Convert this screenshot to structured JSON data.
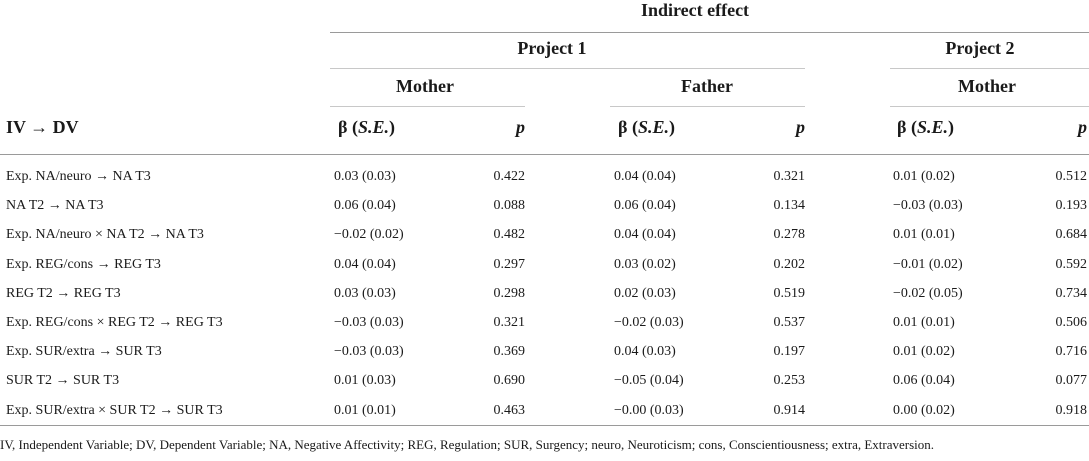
{
  "headers": {
    "super": "Indirect effect",
    "project1": "Project 1",
    "project2": "Project 2",
    "mother1": "Mother",
    "father1": "Father",
    "mother2": "Mother",
    "iv_dv": "IV → DV",
    "beta_prefix": "β (",
    "beta_se": "S.E.",
    "beta_suffix": ")",
    "p": "p"
  },
  "rows": [
    {
      "label": "Exp. NA/neuro → NA T3",
      "b1": "0.03 (0.03)",
      "p1": "0.422",
      "b2": "0.04 (0.04)",
      "p2": "0.321",
      "b3": "0.01 (0.02)",
      "p3": "0.512"
    },
    {
      "label": "NA T2 → NA T3",
      "b1": "0.06 (0.04)",
      "p1": "0.088",
      "b2": "0.06 (0.04)",
      "p2": "0.134",
      "b3": "−0.03 (0.03)",
      "p3": "0.193"
    },
    {
      "label": "Exp. NA/neuro × NA T2 → NA T3",
      "b1": "−0.02 (0.02)",
      "p1": "0.482",
      "b2": "0.04 (0.04)",
      "p2": "0.278",
      "b3": "0.01 (0.01)",
      "p3": "0.684"
    },
    {
      "label": "Exp. REG/cons → REG T3",
      "b1": "0.04 (0.04)",
      "p1": "0.297",
      "b2": "0.03 (0.02)",
      "p2": "0.202",
      "b3": "−0.01 (0.02)",
      "p3": "0.592"
    },
    {
      "label": "REG T2 → REG T3",
      "b1": "0.03 (0.03)",
      "p1": "0.298",
      "b2": "0.02 (0.03)",
      "p2": "0.519",
      "b3": "−0.02 (0.05)",
      "p3": "0.734"
    },
    {
      "label": "Exp. REG/cons × REG T2 → REG T3",
      "b1": "−0.03 (0.03)",
      "p1": "0.321",
      "b2": "−0.02 (0.03)",
      "p2": "0.537",
      "b3": "0.01 (0.01)",
      "p3": "0.506"
    },
    {
      "label": "Exp. SUR/extra → SUR T3",
      "b1": "−0.03 (0.03)",
      "p1": "0.369",
      "b2": "0.04 (0.03)",
      "p2": "0.197",
      "b3": "0.01 (0.02)",
      "p3": "0.716"
    },
    {
      "label": "SUR T2 → SUR T3",
      "b1": "0.01 (0.03)",
      "p1": "0.690",
      "b2": "−0.05 (0.04)",
      "p2": "0.253",
      "b3": "0.06 (0.04)",
      "p3": "0.077"
    },
    {
      "label": "Exp. SUR/extra × SUR T2 → SUR T3",
      "b1": "0.01 (0.01)",
      "p1": "0.463",
      "b2": "−0.00 (0.03)",
      "p2": "0.914",
      "b3": "0.00 (0.02)",
      "p3": "0.918"
    }
  ],
  "footnote": "IV, Independent Variable; DV, Dependent Variable; NA, Negative Affectivity; REG, Regulation; SUR, Surgency; neuro, Neuroticism; cons, Conscientiousness; extra, Extraversion."
}
